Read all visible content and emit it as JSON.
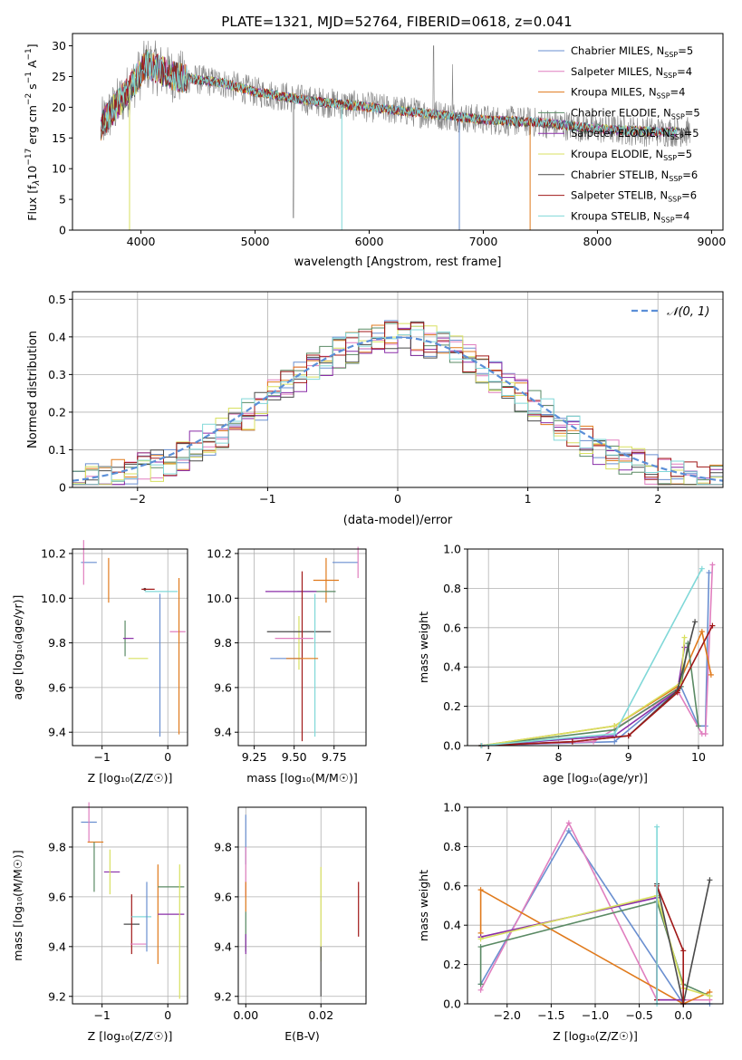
{
  "figure_title": "PLATE=1321, MJD=52764, FIBERID=0618, z=0.041",
  "models": [
    {
      "name": "Chabrier MILES",
      "nssp": "5",
      "color": "#6a8fd0"
    },
    {
      "name": "Salpeter MILES",
      "nssp": "4",
      "color": "#e07fbf"
    },
    {
      "name": "Kroupa MILES",
      "nssp": "4",
      "color": "#e07a1c"
    },
    {
      "name": "Chabrier ELODIE",
      "nssp": "5",
      "color": "#5a8a64"
    },
    {
      "name": "Salpeter ELODIE",
      "nssp": "5",
      "color": "#8a2ea8"
    },
    {
      "name": "Kroupa ELODIE",
      "nssp": "5",
      "color": "#d8e060"
    },
    {
      "name": "Chabrier STELIB",
      "nssp": "6",
      "color": "#4a4a4a"
    },
    {
      "name": "Salpeter STELIB",
      "nssp": "6",
      "color": "#a01818"
    },
    {
      "name": "Kroupa STELIB",
      "nssp": "4",
      "color": "#80d8d8"
    }
  ],
  "chart_data": [
    {
      "id": "spectrum",
      "type": "line",
      "xlabel": "wavelength [Angstrom, rest frame]",
      "ylabel_main": "Flux [f",
      "ylabel_lambda": "λ",
      "ylabel_mid": "10",
      "ylabel_exp1": "−17",
      "ylabel_rest": " erg cm",
      "ylabel_exp2": "−2",
      "ylabel_rest2": " s",
      "ylabel_exp3": "−1",
      "ylabel_rest3": " A",
      "ylabel_exp4": "−1",
      "ylabel_end": "]",
      "nssp_label": "N",
      "nssp_sub": "SSP",
      "xlim": [
        3400,
        9100
      ],
      "ylim": [
        0,
        32
      ],
      "xticks": [
        4000,
        5000,
        6000,
        7000,
        8000,
        9000
      ],
      "yticks": [
        0,
        5,
        10,
        15,
        20,
        25,
        30
      ],
      "data_x_range": [
        3650,
        8810
      ],
      "continuum": [
        [
          3650,
          17
        ],
        [
          3900,
          23
        ],
        [
          4050,
          27
        ],
        [
          4300,
          25
        ],
        [
          4700,
          24
        ],
        [
          5000,
          22.5
        ],
        [
          5500,
          21
        ],
        [
          6000,
          20
        ],
        [
          6500,
          19
        ],
        [
          7000,
          18
        ],
        [
          7500,
          17.5
        ],
        [
          8000,
          16.5
        ],
        [
          8500,
          16
        ],
        [
          8810,
          16
        ]
      ],
      "model_end_x": [
        8700,
        8700,
        7410,
        8700,
        8700,
        8700,
        8810,
        8700,
        8700
      ]
    },
    {
      "id": "residuals",
      "type": "histogram",
      "xlabel": "(data-model)/error",
      "ylabel": "Normed distribution",
      "xlim": [
        -2.5,
        2.5
      ],
      "ylim": [
        0,
        0.52
      ],
      "xticks": [
        -2,
        -1,
        0,
        1,
        2
      ],
      "yticks": [
        0,
        0.1,
        0.2,
        0.3,
        0.4,
        0.5
      ],
      "legend": "𝒩(0, 1)",
      "bin_width": 0.1
    },
    {
      "id": "age_vs_Z",
      "type": "scatter",
      "xlabel": "Z [log₁₀(Z/Z☉)]",
      "ylabel": "age  [log₁₀(age/yr)]",
      "xlim": [
        -1.45,
        0.3
      ],
      "ylim": [
        9.34,
        10.22
      ],
      "xticks": [
        -1,
        0
      ],
      "yticks": [
        9.4,
        9.6,
        9.8,
        10.0,
        10.2
      ],
      "points": [
        {
          "x": -1.2,
          "xerr": 0.12,
          "y": 10.16,
          "yerr": 0.0
        },
        {
          "x": -1.28,
          "xerr": 0.0,
          "y": 10.16,
          "yerr": 0.1
        },
        {
          "x": -0.9,
          "xerr": 0.0,
          "y": 10.08,
          "yerr": 0.1
        },
        {
          "x": -0.65,
          "xerr": 0.0,
          "y": 9.82,
          "yerr": 0.08
        },
        {
          "x": -0.6,
          "xerr": 0.08,
          "y": 9.82,
          "yerr": 0.0
        },
        {
          "x": -0.45,
          "xerr": 0.15,
          "y": 9.73,
          "yerr": 0.0
        },
        {
          "x": -0.35,
          "xerr": 0.0,
          "y": 10.04,
          "yerr": 0.0
        },
        {
          "x": -0.3,
          "xerr": 0.1,
          "y": 10.04,
          "yerr": 0.0
        },
        {
          "x": -0.1,
          "xerr": 0.25,
          "y": 10.03,
          "yerr": 0.0
        },
        {
          "x": -0.12,
          "xerr": 0.0,
          "y": 9.7,
          "yerr": 0.32
        },
        {
          "x": 0.15,
          "xerr": 0.12,
          "y": 9.85,
          "yerr": 0.0
        },
        {
          "x": 0.17,
          "xerr": 0.0,
          "y": 9.74,
          "yerr": 0.35
        }
      ]
    },
    {
      "id": "age_vs_mass",
      "type": "scatter",
      "xlabel": "mass [log₁₀(M/M☉)]",
      "ylabel": "",
      "xlim": [
        9.15,
        9.95
      ],
      "ylim": [
        9.34,
        10.22
      ],
      "xticks": [
        9.25,
        9.5,
        9.75
      ],
      "yticks": [
        9.4,
        9.6,
        9.8,
        10.0,
        10.2
      ],
      "points": [
        {
          "x": 9.82,
          "xerr": 0.08,
          "y": 10.16,
          "yerr": 0.0
        },
        {
          "x": 9.9,
          "xerr": 0.0,
          "y": 10.16,
          "yerr": 0.07
        },
        {
          "x": 9.7,
          "xerr": 0.08,
          "y": 10.08,
          "yerr": 0.1
        },
        {
          "x": 9.64,
          "xerr": 0.12,
          "y": 10.03,
          "yerr": 0.0
        },
        {
          "x": 9.48,
          "xerr": 0.16,
          "y": 10.03,
          "yerr": 0.0
        },
        {
          "x": 9.53,
          "xerr": 0.0,
          "y": 9.8,
          "yerr": 0.12
        },
        {
          "x": 9.53,
          "xerr": 0.2,
          "y": 9.85,
          "yerr": 0.0
        },
        {
          "x": 9.55,
          "xerr": 0.0,
          "y": 9.74,
          "yerr": 0.38
        },
        {
          "x": 9.63,
          "xerr": 0.0,
          "y": 9.7,
          "yerr": 0.32
        },
        {
          "x": 9.45,
          "xerr": 0.1,
          "y": 9.73,
          "yerr": 0.0
        },
        {
          "x": 9.5,
          "xerr": 0.12,
          "y": 9.82,
          "yerr": 0.0
        },
        {
          "x": 9.55,
          "xerr": 0.1,
          "y": 9.73,
          "yerr": 0.0
        }
      ]
    },
    {
      "id": "mass_weight_vs_age",
      "type": "line",
      "xlabel": "age  [log₁₀(age/yr)]",
      "ylabel": "mass weight",
      "xlim": [
        6.7,
        10.35
      ],
      "ylim": [
        0,
        1
      ],
      "xticks": [
        7,
        8,
        9,
        10
      ],
      "yticks": [
        0,
        0.2,
        0.4,
        0.6,
        0.8,
        1.0
      ],
      "series": [
        {
          "x": [
            6.9,
            8.8,
            9.75,
            10.0,
            10.1,
            10.15
          ],
          "y": [
            0.0,
            0.02,
            0.3,
            0.1,
            0.1,
            0.88
          ]
        },
        {
          "x": [
            6.9,
            8.5,
            9.7,
            10.05,
            10.1,
            10.2
          ],
          "y": [
            0.0,
            0.02,
            0.28,
            0.06,
            0.06,
            0.92
          ]
        },
        {
          "x": [
            6.9,
            8.8,
            9.7,
            10.05,
            10.18
          ],
          "y": [
            0.0,
            0.1,
            0.3,
            0.58,
            0.36
          ]
        },
        {
          "x": [
            6.9,
            8.8,
            9.75,
            9.85,
            10.0
          ],
          "y": [
            0.0,
            0.08,
            0.3,
            0.52,
            0.1
          ]
        },
        {
          "x": [
            6.9,
            8.8,
            9.7,
            9.8
          ],
          "y": [
            0.0,
            0.05,
            0.28,
            0.5
          ]
        },
        {
          "x": [
            6.9,
            8.8,
            9.75,
            9.8
          ],
          "y": [
            0.0,
            0.1,
            0.32,
            0.55
          ]
        },
        {
          "x": [
            6.9,
            8.2,
            9.0,
            9.7,
            9.95
          ],
          "y": [
            0.0,
            0.02,
            0.05,
            0.28,
            0.63
          ]
        },
        {
          "x": [
            6.9,
            8.2,
            9.0,
            9.7,
            10.2
          ],
          "y": [
            0.0,
            0.02,
            0.05,
            0.27,
            0.61
          ]
        },
        {
          "x": [
            6.9,
            8.8,
            10.05
          ],
          "y": [
            0.0,
            0.06,
            0.9
          ]
        }
      ]
    },
    {
      "id": "mass_vs_Z",
      "type": "scatter",
      "xlabel": "Z [log₁₀(Z/Z☉)]",
      "ylabel": "mass [log₁₀(M/M☉)]",
      "xlim": [
        -1.45,
        0.3
      ],
      "ylim": [
        9.17,
        9.96
      ],
      "xticks": [
        -1,
        0
      ],
      "yticks": [
        9.2,
        9.4,
        9.6,
        9.8
      ],
      "points": [
        {
          "x": -1.2,
          "xerr": 0.12,
          "y": 9.9,
          "yerr": 0.0
        },
        {
          "x": -1.2,
          "xerr": 0.0,
          "y": 9.9,
          "yerr": 0.08
        },
        {
          "x": -1.1,
          "xerr": 0.12,
          "y": 9.82,
          "yerr": 0.0
        },
        {
          "x": -1.12,
          "xerr": 0.0,
          "y": 9.72,
          "yerr": 0.1
        },
        {
          "x": -0.85,
          "xerr": 0.12,
          "y": 9.7,
          "yerr": 0.0
        },
        {
          "x": -0.88,
          "xerr": 0.0,
          "y": 9.7,
          "yerr": 0.09
        },
        {
          "x": -0.55,
          "xerr": 0.12,
          "y": 9.49,
          "yerr": 0.0
        },
        {
          "x": -0.55,
          "xerr": 0.0,
          "y": 9.49,
          "yerr": 0.12
        },
        {
          "x": -0.4,
          "xerr": 0.15,
          "y": 9.52,
          "yerr": 0.0
        },
        {
          "x": -0.32,
          "xerr": 0.0,
          "y": 9.52,
          "yerr": 0.14
        },
        {
          "x": -0.45,
          "xerr": 0.12,
          "y": 9.41,
          "yerr": 0.0
        },
        {
          "x": -0.15,
          "xerr": 0.0,
          "y": 9.53,
          "yerr": 0.2
        },
        {
          "x": 0.05,
          "xerr": 0.2,
          "y": 9.64,
          "yerr": 0.0
        },
        {
          "x": 0.05,
          "xerr": 0.2,
          "y": 9.53,
          "yerr": 0.0
        },
        {
          "x": 0.18,
          "xerr": 0.0,
          "y": 9.46,
          "yerr": 0.27
        }
      ]
    },
    {
      "id": "mass_vs_ebv",
      "type": "scatter",
      "xlabel": "E(B-V)",
      "ylabel": "",
      "xlim": [
        -0.002,
        0.032
      ],
      "ylim": [
        9.17,
        9.96
      ],
      "xticks": [
        0.0,
        0.02
      ],
      "yticks": [
        9.2,
        9.4,
        9.6,
        9.8
      ],
      "points": [
        {
          "x": 0.0,
          "y": 9.83,
          "yerr": 0.1
        },
        {
          "x": 0.0,
          "y": 9.7,
          "yerr": 0.1
        },
        {
          "x": 0.0,
          "y": 9.6,
          "yerr": 0.06
        },
        {
          "x": 0.0,
          "y": 9.46,
          "yerr": 0.08
        },
        {
          "x": 0.0,
          "y": 9.41,
          "yerr": 0.04
        },
        {
          "x": 0.02,
          "y": 9.53,
          "yerr": 0.19
        },
        {
          "x": 0.02,
          "y": 9.3,
          "yerr": 0.1
        },
        {
          "x": 0.03,
          "y": 9.55,
          "yerr": 0.11
        }
      ]
    },
    {
      "id": "mass_weight_vs_Z",
      "type": "line",
      "xlabel": "Z [log₁₀(Z/Z☉)]",
      "ylabel": "mass weight",
      "xlim": [
        -2.45,
        0.45
      ],
      "ylim": [
        0,
        1
      ],
      "xticks": [
        -2.0,
        -1.5,
        -1.0,
        -0.5,
        0.0
      ],
      "yticks": [
        0,
        0.2,
        0.4,
        0.6,
        0.8,
        1.0
      ],
      "series": [
        {
          "x": [
            -2.3,
            -1.3,
            0.0,
            0.3
          ],
          "y": [
            0.1,
            0.88,
            0.0,
            0.0
          ]
        },
        {
          "x": [
            -2.3,
            -1.3,
            -0.3,
            0.3
          ],
          "y": [
            0.07,
            0.92,
            0.02,
            0.02
          ]
        },
        {
          "x": [
            -2.3,
            -2.3,
            0.0,
            0.3
          ],
          "y": [
            0.36,
            0.58,
            0.0,
            0.06
          ]
        },
        {
          "x": [
            -2.3,
            -2.3,
            -0.3,
            0.0,
            0.3
          ],
          "y": [
            0.1,
            0.29,
            0.52,
            0.1,
            0.04
          ]
        },
        {
          "x": [
            -2.3,
            -0.3,
            -0.3,
            0.0
          ],
          "y": [
            0.34,
            0.54,
            0.02,
            0.02
          ]
        },
        {
          "x": [
            -2.3,
            -0.3,
            0.0,
            0.3
          ],
          "y": [
            0.33,
            0.55,
            0.08,
            0.04
          ]
        },
        {
          "x": [
            -0.3,
            0.0,
            0.3
          ],
          "y": [
            0.61,
            0.0,
            0.63
          ]
        },
        {
          "x": [
            -0.3,
            -0.3,
            0.0,
            0.0
          ],
          "y": [
            0.02,
            0.6,
            0.27,
            0.0
          ]
        },
        {
          "x": [
            -0.3,
            -0.3
          ],
          "y": [
            0.0,
            0.9
          ]
        }
      ]
    }
  ]
}
